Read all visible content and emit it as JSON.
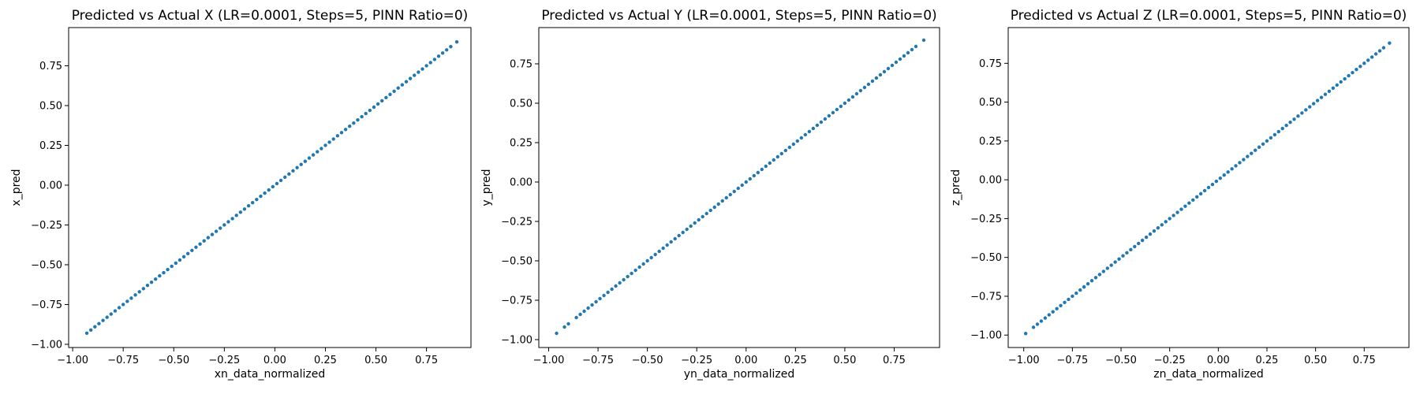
{
  "chart_data": [
    {
      "type": "scatter",
      "title": "Predicted vs Actual X (LR=0.0001, Steps=5, PINN Ratio=0)",
      "xlabel": "xn_data_normalized",
      "ylabel": "x_pred",
      "xlim": [
        -1.02,
        0.97
      ],
      "ylim": [
        -1.02,
        0.99
      ],
      "xticks": [
        -1.0,
        -0.75,
        -0.5,
        -0.25,
        0.0,
        0.25,
        0.5,
        0.75
      ],
      "xtick_labels": [
        "−1.00",
        "−0.75",
        "−0.50",
        "−0.25",
        "0.00",
        "0.25",
        "0.50",
        "0.75"
      ],
      "yticks": [
        -1.0,
        -0.75,
        -0.5,
        -0.25,
        0.0,
        0.25,
        0.5,
        0.75
      ],
      "ytick_labels": [
        "−1.00",
        "−0.75",
        "−0.50",
        "−0.25",
        "0.00",
        "0.25",
        "0.50",
        "0.75"
      ],
      "grid": false,
      "color": "#1f77b4",
      "x": [
        -0.93,
        -0.91,
        -0.89,
        -0.87,
        -0.85,
        -0.83,
        -0.81,
        -0.79,
        -0.77,
        -0.75,
        -0.73,
        -0.71,
        -0.69,
        -0.67,
        -0.65,
        -0.63,
        -0.61,
        -0.59,
        -0.57,
        -0.55,
        -0.53,
        -0.51,
        -0.49,
        -0.47,
        -0.45,
        -0.43,
        -0.41,
        -0.39,
        -0.37,
        -0.35,
        -0.33,
        -0.31,
        -0.29,
        -0.27,
        -0.25,
        -0.23,
        -0.21,
        -0.19,
        -0.17,
        -0.15,
        -0.13,
        -0.11,
        -0.09,
        -0.07,
        -0.05,
        -0.03,
        -0.01,
        0.01,
        0.03,
        0.05,
        0.07,
        0.09,
        0.11,
        0.13,
        0.15,
        0.17,
        0.19,
        0.21,
        0.23,
        0.25,
        0.27,
        0.29,
        0.31,
        0.33,
        0.35,
        0.37,
        0.39,
        0.41,
        0.43,
        0.45,
        0.47,
        0.49,
        0.51,
        0.53,
        0.55,
        0.57,
        0.59,
        0.61,
        0.63,
        0.65,
        0.67,
        0.69,
        0.71,
        0.73,
        0.75,
        0.77,
        0.79,
        0.81,
        0.83,
        0.85,
        0.87,
        0.9
      ],
      "y": [
        -0.93,
        -0.91,
        -0.89,
        -0.87,
        -0.85,
        -0.83,
        -0.81,
        -0.79,
        -0.77,
        -0.75,
        -0.73,
        -0.71,
        -0.69,
        -0.67,
        -0.65,
        -0.63,
        -0.61,
        -0.59,
        -0.57,
        -0.55,
        -0.53,
        -0.51,
        -0.49,
        -0.47,
        -0.45,
        -0.43,
        -0.41,
        -0.39,
        -0.37,
        -0.35,
        -0.33,
        -0.31,
        -0.29,
        -0.27,
        -0.25,
        -0.23,
        -0.21,
        -0.19,
        -0.17,
        -0.15,
        -0.13,
        -0.11,
        -0.09,
        -0.07,
        -0.05,
        -0.03,
        -0.01,
        0.01,
        0.03,
        0.05,
        0.07,
        0.09,
        0.11,
        0.13,
        0.15,
        0.17,
        0.19,
        0.21,
        0.23,
        0.25,
        0.27,
        0.29,
        0.31,
        0.33,
        0.35,
        0.37,
        0.39,
        0.41,
        0.43,
        0.45,
        0.47,
        0.49,
        0.51,
        0.53,
        0.55,
        0.57,
        0.59,
        0.61,
        0.63,
        0.65,
        0.67,
        0.69,
        0.71,
        0.73,
        0.75,
        0.77,
        0.79,
        0.81,
        0.83,
        0.85,
        0.87,
        0.9
      ]
    },
    {
      "type": "scatter",
      "title": "Predicted vs Actual Y (LR=0.0001, Steps=5, PINN Ratio=0)",
      "xlabel": "yn_data_normalized",
      "ylabel": "y_pred",
      "xlim": [
        -1.05,
        0.98
      ],
      "ylim": [
        -1.05,
        0.98
      ],
      "xticks": [
        -1.0,
        -0.75,
        -0.5,
        -0.25,
        0.0,
        0.25,
        0.5,
        0.75
      ],
      "xtick_labels": [
        "−1.00",
        "−0.75",
        "−0.50",
        "−0.25",
        "0.00",
        "0.25",
        "0.50",
        "0.75"
      ],
      "yticks": [
        -1.0,
        -0.75,
        -0.5,
        -0.25,
        0.0,
        0.25,
        0.5,
        0.75
      ],
      "ytick_labels": [
        "−1.00",
        "−0.75",
        "−0.50",
        "−0.25",
        "0.00",
        "0.25",
        "0.50",
        "0.75"
      ],
      "grid": false,
      "color": "#1f77b4",
      "x": [
        -0.96,
        -0.92,
        -0.9,
        -0.86,
        -0.84,
        -0.82,
        -0.8,
        -0.78,
        -0.76,
        -0.74,
        -0.72,
        -0.7,
        -0.68,
        -0.66,
        -0.64,
        -0.62,
        -0.6,
        -0.58,
        -0.56,
        -0.54,
        -0.52,
        -0.5,
        -0.48,
        -0.46,
        -0.44,
        -0.42,
        -0.4,
        -0.38,
        -0.36,
        -0.34,
        -0.32,
        -0.3,
        -0.28,
        -0.26,
        -0.24,
        -0.22,
        -0.2,
        -0.18,
        -0.16,
        -0.14,
        -0.12,
        -0.1,
        -0.08,
        -0.06,
        -0.04,
        -0.02,
        0.0,
        0.02,
        0.04,
        0.06,
        0.08,
        0.1,
        0.12,
        0.14,
        0.16,
        0.18,
        0.2,
        0.22,
        0.24,
        0.26,
        0.28,
        0.3,
        0.32,
        0.34,
        0.36,
        0.38,
        0.4,
        0.42,
        0.44,
        0.46,
        0.48,
        0.5,
        0.52,
        0.54,
        0.56,
        0.58,
        0.6,
        0.62,
        0.64,
        0.66,
        0.68,
        0.7,
        0.72,
        0.74,
        0.76,
        0.78,
        0.8,
        0.82,
        0.84,
        0.86,
        0.9
      ],
      "y": [
        -0.96,
        -0.92,
        -0.9,
        -0.86,
        -0.84,
        -0.82,
        -0.8,
        -0.78,
        -0.76,
        -0.74,
        -0.72,
        -0.7,
        -0.68,
        -0.66,
        -0.64,
        -0.62,
        -0.6,
        -0.58,
        -0.56,
        -0.54,
        -0.52,
        -0.5,
        -0.48,
        -0.46,
        -0.44,
        -0.42,
        -0.4,
        -0.38,
        -0.36,
        -0.34,
        -0.32,
        -0.3,
        -0.28,
        -0.26,
        -0.24,
        -0.22,
        -0.2,
        -0.18,
        -0.16,
        -0.14,
        -0.12,
        -0.1,
        -0.08,
        -0.06,
        -0.04,
        -0.02,
        0.0,
        0.02,
        0.04,
        0.06,
        0.08,
        0.1,
        0.12,
        0.14,
        0.16,
        0.18,
        0.2,
        0.22,
        0.24,
        0.26,
        0.28,
        0.3,
        0.32,
        0.34,
        0.36,
        0.38,
        0.4,
        0.42,
        0.44,
        0.46,
        0.48,
        0.5,
        0.52,
        0.54,
        0.56,
        0.58,
        0.6,
        0.62,
        0.64,
        0.66,
        0.68,
        0.7,
        0.72,
        0.74,
        0.76,
        0.78,
        0.8,
        0.82,
        0.84,
        0.86,
        0.9
      ]
    },
    {
      "type": "scatter",
      "title": "Predicted vs Actual Z (LR=0.0001, Steps=5, PINN Ratio=0)",
      "xlabel": "zn_data_normalized",
      "ylabel": "z_pred",
      "xlim": [
        -1.08,
        0.98
      ],
      "ylim": [
        -1.08,
        0.98
      ],
      "xticks": [
        -1.0,
        -0.75,
        -0.5,
        -0.25,
        0.0,
        0.25,
        0.5,
        0.75
      ],
      "xtick_labels": [
        "−1.00",
        "−0.75",
        "−0.50",
        "−0.25",
        "0.00",
        "0.25",
        "0.50",
        "0.75"
      ],
      "yticks": [
        -1.0,
        -0.75,
        -0.5,
        -0.25,
        0.0,
        0.25,
        0.5,
        0.75
      ],
      "ytick_labels": [
        "−1.00",
        "−0.75",
        "−0.50",
        "−0.25",
        "0.00",
        "0.25",
        "0.50",
        "0.75"
      ],
      "grid": false,
      "color": "#1f77b4",
      "x": [
        -0.99,
        -0.95,
        -0.93,
        -0.91,
        -0.89,
        -0.87,
        -0.85,
        -0.83,
        -0.81,
        -0.79,
        -0.77,
        -0.75,
        -0.73,
        -0.71,
        -0.69,
        -0.67,
        -0.65,
        -0.63,
        -0.61,
        -0.59,
        -0.57,
        -0.55,
        -0.53,
        -0.51,
        -0.49,
        -0.47,
        -0.45,
        -0.43,
        -0.41,
        -0.39,
        -0.37,
        -0.35,
        -0.33,
        -0.31,
        -0.29,
        -0.27,
        -0.25,
        -0.23,
        -0.21,
        -0.19,
        -0.17,
        -0.15,
        -0.13,
        -0.11,
        -0.09,
        -0.07,
        -0.05,
        -0.03,
        -0.01,
        0.01,
        0.03,
        0.05,
        0.07,
        0.09,
        0.11,
        0.13,
        0.15,
        0.17,
        0.19,
        0.21,
        0.23,
        0.25,
        0.27,
        0.29,
        0.31,
        0.33,
        0.35,
        0.37,
        0.39,
        0.41,
        0.43,
        0.45,
        0.47,
        0.49,
        0.51,
        0.53,
        0.55,
        0.57,
        0.59,
        0.61,
        0.63,
        0.65,
        0.67,
        0.69,
        0.71,
        0.73,
        0.75,
        0.77,
        0.79,
        0.81,
        0.83,
        0.85,
        0.88
      ],
      "y": [
        -0.99,
        -0.95,
        -0.93,
        -0.91,
        -0.89,
        -0.87,
        -0.85,
        -0.83,
        -0.81,
        -0.79,
        -0.77,
        -0.75,
        -0.73,
        -0.71,
        -0.69,
        -0.67,
        -0.65,
        -0.63,
        -0.61,
        -0.59,
        -0.57,
        -0.55,
        -0.53,
        -0.51,
        -0.49,
        -0.47,
        -0.45,
        -0.43,
        -0.41,
        -0.39,
        -0.37,
        -0.35,
        -0.33,
        -0.31,
        -0.29,
        -0.27,
        -0.25,
        -0.23,
        -0.21,
        -0.19,
        -0.17,
        -0.15,
        -0.13,
        -0.11,
        -0.09,
        -0.07,
        -0.05,
        -0.03,
        -0.01,
        0.01,
        0.03,
        0.05,
        0.07,
        0.09,
        0.11,
        0.13,
        0.15,
        0.17,
        0.19,
        0.21,
        0.23,
        0.25,
        0.27,
        0.29,
        0.31,
        0.33,
        0.35,
        0.37,
        0.39,
        0.41,
        0.43,
        0.45,
        0.47,
        0.49,
        0.51,
        0.53,
        0.55,
        0.57,
        0.59,
        0.61,
        0.63,
        0.65,
        0.67,
        0.69,
        0.71,
        0.73,
        0.75,
        0.77,
        0.79,
        0.81,
        0.83,
        0.85,
        0.88
      ]
    }
  ]
}
